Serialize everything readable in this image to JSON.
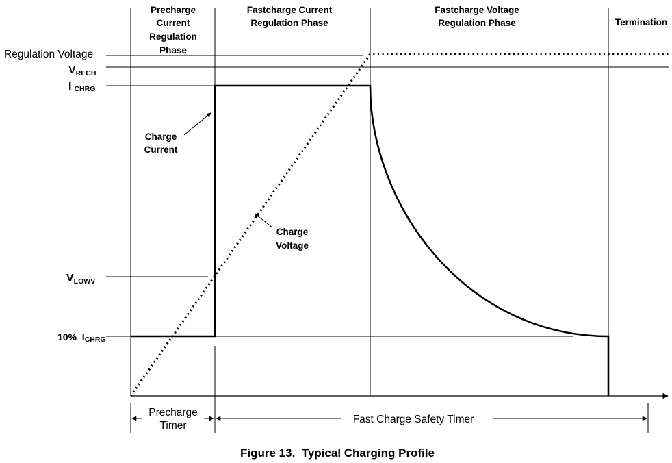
{
  "phases": {
    "precharge": [
      "Precharge",
      "Current",
      "Regulation",
      "Phase"
    ],
    "fastcharge_current": [
      "Fastcharge Current",
      "Regulation Phase"
    ],
    "fastcharge_voltage": [
      "Fastcharge Voltage",
      "Regulation Phase"
    ],
    "termination": [
      "Termination"
    ]
  },
  "levels": {
    "regulation_voltage": "Regulation Voltage",
    "vrech_main": "V",
    "vrech_sub": "RECH",
    "ichrg_main": "I",
    "ichrg_sub": "CHRG",
    "vlowv_main": "V",
    "vlowv_sub": "LOWV",
    "ten_pct_main": "10%  I",
    "ten_pct_sub": "CHRG"
  },
  "annotations": {
    "charge_current": [
      "Charge",
      "Current"
    ],
    "charge_voltage": [
      "Charge",
      "Voltage"
    ]
  },
  "timers": {
    "precharge": [
      "Precharge",
      "Timer"
    ],
    "fast_charge": "Fast Charge Safety Timer"
  },
  "caption": "Figure 13.  Typical Charging Profile"
}
